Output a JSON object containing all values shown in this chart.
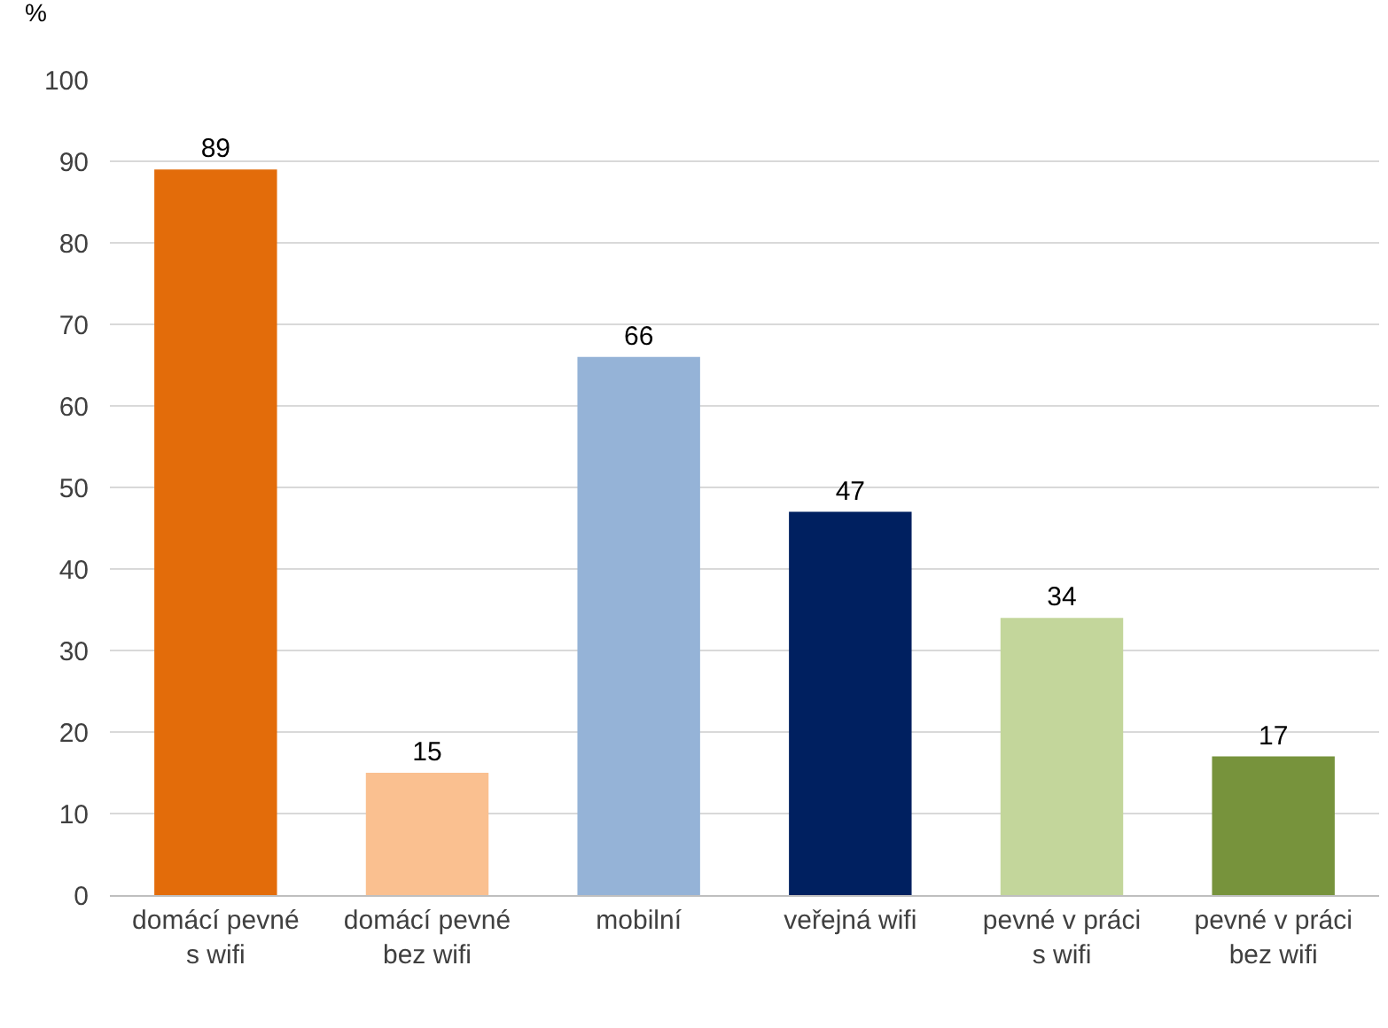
{
  "chart_data": {
    "type": "bar",
    "ylabel": "%",
    "categories": [
      "domácí pevné s wifi",
      "domácí pevné bez wifi",
      "mobilní",
      "veřejná wifi",
      "pevné v práci s wifi",
      "pevné v práci bez wifi"
    ],
    "values": [
      89,
      15,
      66,
      47,
      34,
      17
    ],
    "colors": [
      "#e36c0a",
      "#fac090",
      "#95b3d7",
      "#002060",
      "#c3d69b",
      "#77933c"
    ],
    "ylim": [
      0,
      100
    ],
    "yticks": [
      0,
      10,
      20,
      30,
      40,
      50,
      60,
      70,
      80,
      90,
      100
    ],
    "grid": "y",
    "data_labels": true
  }
}
